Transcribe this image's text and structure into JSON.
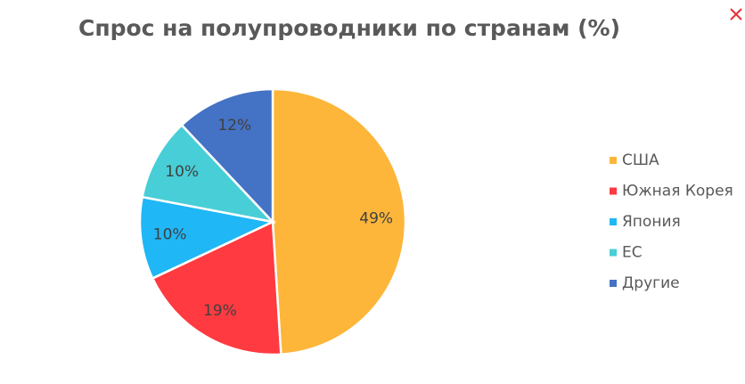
{
  "chart_data": {
    "type": "pie",
    "title": "Спрос на полупроводники по странам (%)",
    "categories": [
      "США",
      "Южная Корея",
      "Япония",
      "ЕС",
      "Другие"
    ],
    "values": [
      49,
      19,
      10,
      10,
      12
    ],
    "value_labels": [
      "49%",
      "19%",
      "10%",
      "10%",
      "12%"
    ],
    "colors": [
      "#FDB63A",
      "#FF3A40",
      "#1FB7F6",
      "#48CED6",
      "#4472C4"
    ],
    "legend": "right"
  }
}
